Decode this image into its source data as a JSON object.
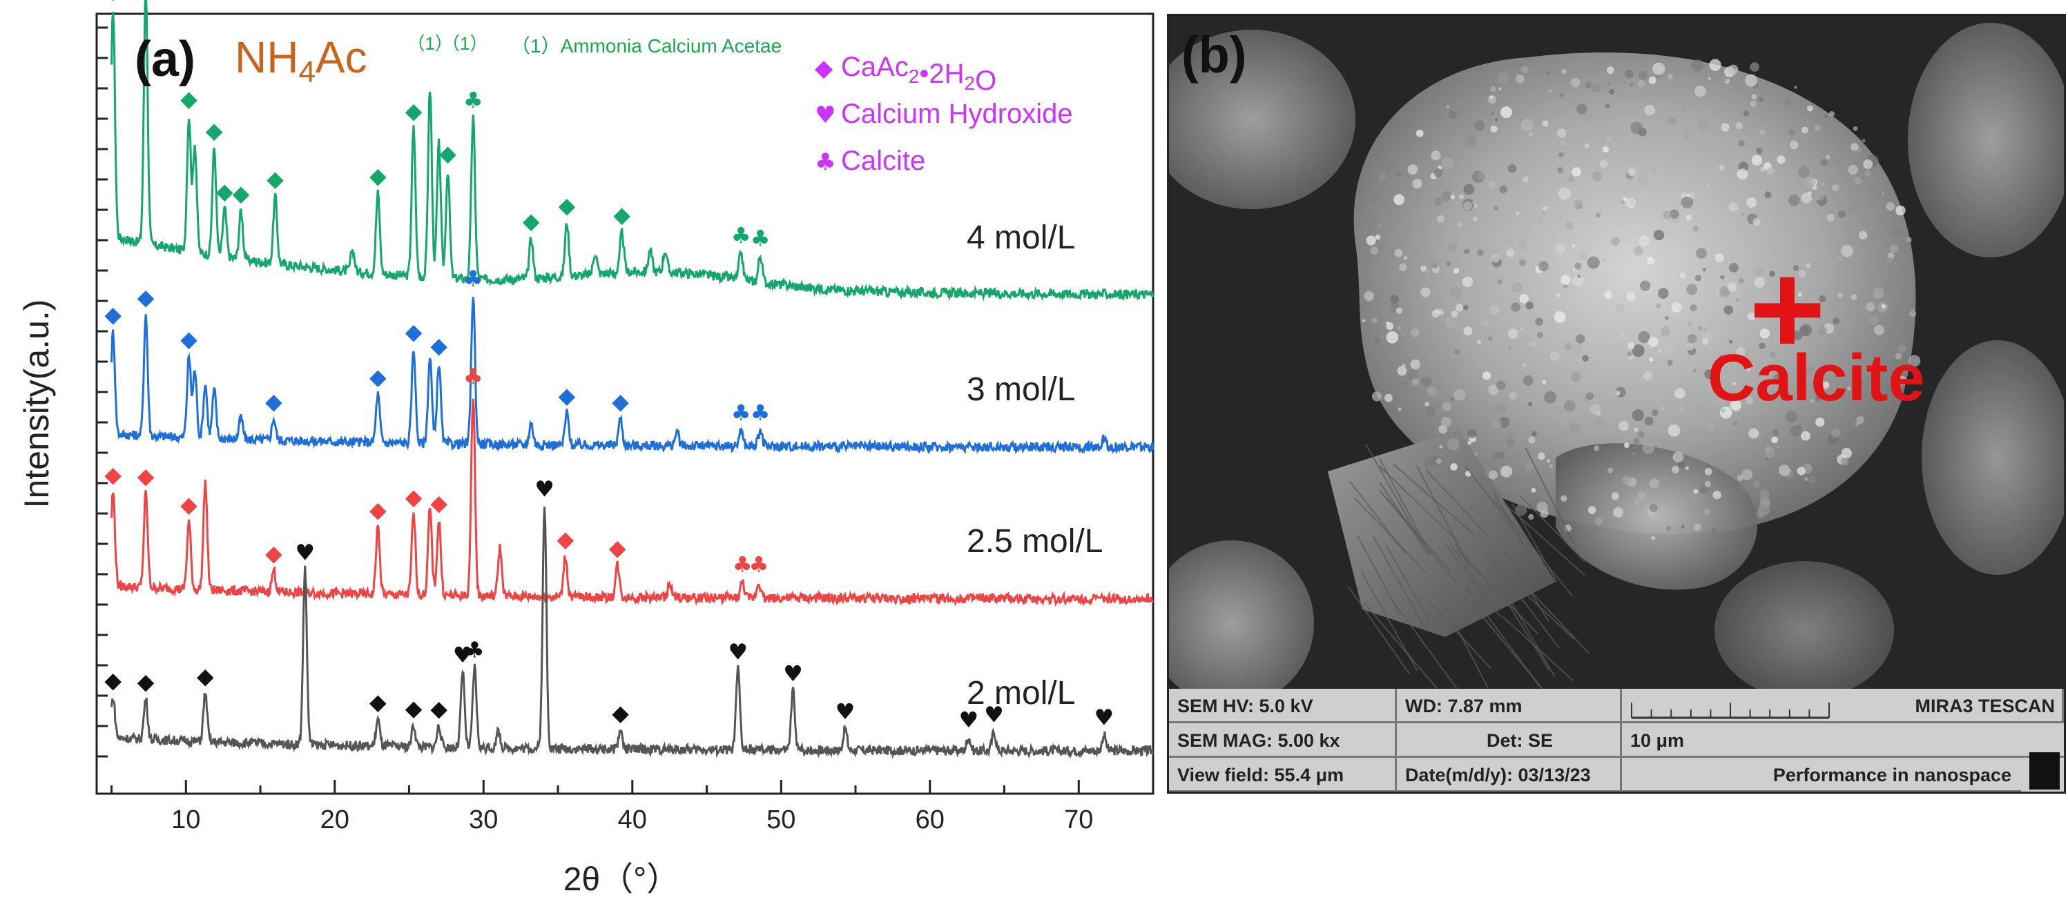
{
  "panel_a": {
    "label": "(a)",
    "compound": "NH4Ac",
    "annotation_marker": "（1）",
    "annotation_text": "（1）Ammonia Calcium Acetae",
    "legend": [
      {
        "symbol": "diamond",
        "symbol_char": "◆",
        "label": "CaAc2•2H2O",
        "color": "#cc33ff"
      },
      {
        "symbol": "heart",
        "symbol_char": "♥",
        "label": "Calcium Hydroxide",
        "color": "#cc33ff"
      },
      {
        "symbol": "club",
        "symbol_char": "♣",
        "label": "Calcite",
        "color": "#cc33ff"
      }
    ]
  },
  "panel_b": {
    "label": "(b)",
    "marker": "+",
    "annotation": "Calcite",
    "info": {
      "hv": "SEM HV: 5.0 kV",
      "wd": "WD: 7.87 mm",
      "brand": "MIRA3 TESCAN",
      "mag": "SEM MAG: 5.00 kx",
      "det": "Det: SE",
      "scale": "10 μm",
      "view_field": "View field: 55.4 μm",
      "date": "Date(m/d/y): 03/13/23",
      "slogan": "Performance in nanospace"
    }
  },
  "chart_data": {
    "type": "line",
    "xlabel": "2θ（°）",
    "ylabel": "Intensity(a.u.)",
    "xlim": [
      4,
      75
    ],
    "x_ticks": [
      10,
      20,
      30,
      40,
      50,
      60,
      70
    ],
    "y_ticks_shown": false,
    "series": [
      {
        "name": "4 mol/L",
        "color": "#13a86a",
        "offset": 3.0,
        "baseline": 0.22,
        "peaks": [
          [
            5.1,
            0.85
          ],
          [
            7.3,
            0.95
          ],
          [
            10.2,
            0.5
          ],
          [
            10.6,
            0.4
          ],
          [
            11.9,
            0.4
          ],
          [
            12.6,
            0.18
          ],
          [
            13.7,
            0.18
          ],
          [
            16.0,
            0.25
          ],
          [
            21.2,
            0.08
          ],
          [
            22.9,
            0.3
          ],
          [
            25.3,
            0.55
          ],
          [
            26.4,
            0.7
          ],
          [
            27.0,
            0.5
          ],
          [
            27.6,
            0.4
          ],
          [
            29.3,
            0.6
          ],
          [
            33.2,
            0.15
          ],
          [
            35.6,
            0.2
          ],
          [
            37.5,
            0.08
          ],
          [
            39.3,
            0.15
          ],
          [
            41.2,
            0.08
          ],
          [
            42.2,
            0.08
          ],
          [
            47.3,
            0.1
          ],
          [
            48.6,
            0.1
          ]
        ],
        "markers": [
          {
            "x": 5.1,
            "symbol": "diamond"
          },
          {
            "x": 7.3,
            "symbol": "diamond"
          },
          {
            "x": 10.2,
            "symbol": "diamond"
          },
          {
            "x": 11.9,
            "symbol": "diamond"
          },
          {
            "x": 12.6,
            "symbol": "diamond"
          },
          {
            "x": 13.7,
            "symbol": "diamond"
          },
          {
            "x": 16.0,
            "symbol": "diamond"
          },
          {
            "x": 22.9,
            "symbol": "diamond"
          },
          {
            "x": 25.3,
            "symbol": "diamond"
          },
          {
            "x": 27.6,
            "symbol": "diamond"
          },
          {
            "x": 29.3,
            "symbol": "club"
          },
          {
            "x": 33.2,
            "symbol": "diamond"
          },
          {
            "x": 35.6,
            "symbol": "diamond"
          },
          {
            "x": 39.3,
            "symbol": "diamond"
          },
          {
            "x": 47.3,
            "symbol": "club"
          },
          {
            "x": 48.6,
            "symbol": "club"
          }
        ]
      },
      {
        "name": "3 mol/L",
        "color": "#1f6fdb",
        "offset": 2.0,
        "baseline": 0.05,
        "peaks": [
          [
            5.1,
            0.38
          ],
          [
            7.3,
            0.45
          ],
          [
            10.2,
            0.3
          ],
          [
            10.6,
            0.25
          ],
          [
            11.3,
            0.2
          ],
          [
            11.9,
            0.18
          ],
          [
            13.7,
            0.08
          ],
          [
            15.9,
            0.08
          ],
          [
            22.9,
            0.18
          ],
          [
            25.3,
            0.35
          ],
          [
            26.4,
            0.32
          ],
          [
            27.0,
            0.3
          ],
          [
            29.3,
            0.55
          ],
          [
            33.2,
            0.08
          ],
          [
            35.6,
            0.12
          ],
          [
            39.2,
            0.1
          ],
          [
            43.0,
            0.05
          ],
          [
            47.3,
            0.06
          ],
          [
            48.6,
            0.06
          ],
          [
            71.7,
            0.04
          ]
        ],
        "markers": [
          {
            "x": 5.1,
            "symbol": "diamond"
          },
          {
            "x": 7.3,
            "symbol": "diamond"
          },
          {
            "x": 10.2,
            "symbol": "diamond"
          },
          {
            "x": 15.9,
            "symbol": "diamond"
          },
          {
            "x": 22.9,
            "symbol": "diamond"
          },
          {
            "x": 25.3,
            "symbol": "diamond"
          },
          {
            "x": 27.0,
            "symbol": "diamond"
          },
          {
            "x": 29.3,
            "symbol": "club"
          },
          {
            "x": 35.6,
            "symbol": "diamond"
          },
          {
            "x": 39.2,
            "symbol": "diamond"
          },
          {
            "x": 47.3,
            "symbol": "club"
          },
          {
            "x": 48.6,
            "symbol": "club"
          }
        ]
      },
      {
        "name": "2.5 mol/L",
        "color": "#ee4444",
        "offset": 1.0,
        "baseline": 0.05,
        "peaks": [
          [
            5.1,
            0.35
          ],
          [
            7.3,
            0.35
          ],
          [
            10.2,
            0.25
          ],
          [
            11.3,
            0.4
          ],
          [
            15.9,
            0.08
          ],
          [
            22.9,
            0.25
          ],
          [
            25.3,
            0.3
          ],
          [
            26.4,
            0.32
          ],
          [
            27.0,
            0.28
          ],
          [
            29.3,
            0.75
          ],
          [
            31.1,
            0.18
          ],
          [
            35.5,
            0.15
          ],
          [
            39.0,
            0.12
          ],
          [
            42.5,
            0.05
          ],
          [
            47.4,
            0.06
          ],
          [
            48.5,
            0.06
          ]
        ],
        "markers": [
          {
            "x": 5.1,
            "symbol": "diamond"
          },
          {
            "x": 7.3,
            "symbol": "diamond"
          },
          {
            "x": 10.2,
            "symbol": "diamond"
          },
          {
            "x": 15.9,
            "symbol": "diamond"
          },
          {
            "x": 22.9,
            "symbol": "diamond"
          },
          {
            "x": 25.3,
            "symbol": "diamond"
          },
          {
            "x": 27.0,
            "symbol": "diamond"
          },
          {
            "x": 29.3,
            "symbol": "club"
          },
          {
            "x": 35.5,
            "symbol": "diamond"
          },
          {
            "x": 39.0,
            "symbol": "diamond"
          },
          {
            "x": 47.4,
            "symbol": "club"
          },
          {
            "x": 48.5,
            "symbol": "club"
          }
        ]
      },
      {
        "name": "2 mol/L",
        "color": "#555555",
        "offset": 0.0,
        "baseline": 0.05,
        "peaks": [
          [
            5.1,
            0.15
          ],
          [
            7.3,
            0.15
          ],
          [
            11.3,
            0.18
          ],
          [
            18.0,
            0.65
          ],
          [
            22.9,
            0.1
          ],
          [
            25.3,
            0.08
          ],
          [
            27.0,
            0.08
          ],
          [
            28.6,
            0.28
          ],
          [
            29.4,
            0.3
          ],
          [
            31.0,
            0.06
          ],
          [
            34.1,
            0.9
          ],
          [
            39.2,
            0.07
          ],
          [
            47.1,
            0.3
          ],
          [
            50.8,
            0.22
          ],
          [
            54.3,
            0.08
          ],
          [
            62.6,
            0.05
          ],
          [
            64.3,
            0.07
          ],
          [
            71.7,
            0.06
          ]
        ],
        "markers": [
          {
            "x": 5.1,
            "symbol": "diamond"
          },
          {
            "x": 7.3,
            "symbol": "diamond"
          },
          {
            "x": 11.3,
            "symbol": "diamond"
          },
          {
            "x": 18.0,
            "symbol": "heart"
          },
          {
            "x": 22.9,
            "symbol": "diamond"
          },
          {
            "x": 25.3,
            "symbol": "diamond"
          },
          {
            "x": 27.0,
            "symbol": "diamond"
          },
          {
            "x": 28.6,
            "symbol": "heart"
          },
          {
            "x": 29.4,
            "symbol": "club"
          },
          {
            "x": 34.1,
            "symbol": "heart"
          },
          {
            "x": 39.2,
            "symbol": "diamond"
          },
          {
            "x": 47.1,
            "symbol": "heart"
          },
          {
            "x": 50.8,
            "symbol": "heart"
          },
          {
            "x": 54.3,
            "symbol": "heart"
          },
          {
            "x": 62.6,
            "symbol": "heart"
          },
          {
            "x": 64.3,
            "symbol": "heart"
          },
          {
            "x": 71.7,
            "symbol": "heart"
          }
        ]
      }
    ],
    "annotations": [
      {
        "text": "（1）",
        "x": 26.4
      }
    ]
  }
}
